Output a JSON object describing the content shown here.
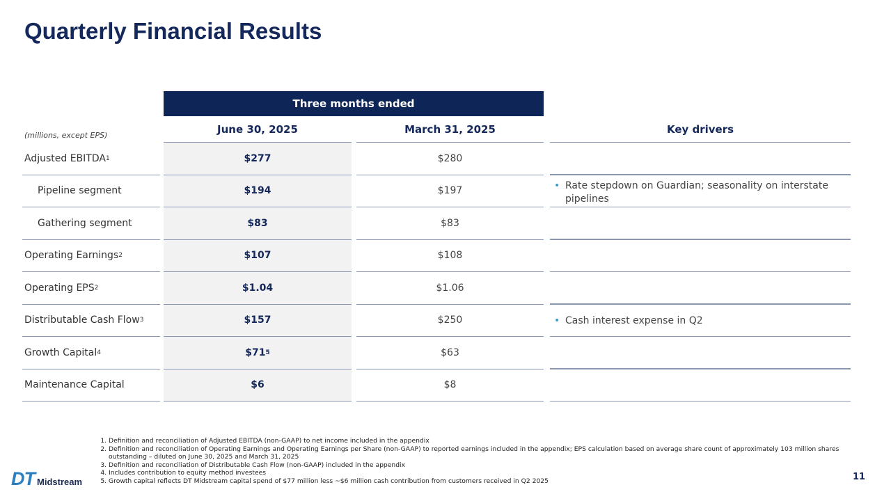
{
  "title": "Quarterly Financial Results",
  "table": {
    "group_header": "Three months ended",
    "units_note": "(millions, except EPS)",
    "columns": [
      "June 30, 2025",
      "March 31, 2025",
      "Key drivers"
    ],
    "rows": [
      {
        "label": "Adjusted EBITDA",
        "label_sup": "1",
        "current": "$277",
        "prior": "$280"
      },
      {
        "label": "Pipeline segment",
        "current": "$194",
        "prior": "$197"
      },
      {
        "label": "Gathering segment",
        "current": "$83",
        "prior": "$83"
      },
      {
        "label": "Operating Earnings",
        "label_sup": "2",
        "current": "$107",
        "prior": "$108"
      },
      {
        "label": "Operating EPS",
        "label_sup": "2",
        "current": "$1.04",
        "prior": "$1.06"
      },
      {
        "label": "Distributable Cash Flow",
        "label_sup": "3",
        "current": "$157",
        "prior": "$250"
      },
      {
        "label": "Growth Capital",
        "label_sup": "4",
        "current": "$71",
        "current_sup": "5",
        "prior": "$63"
      },
      {
        "label": "Maintenance Capital",
        "current": "$6",
        "prior": "$8"
      }
    ],
    "drivers": [
      "Rate stepdown on Guardian; seasonality on interstate pipelines",
      "Cash interest expense in Q2"
    ]
  },
  "footnotes": [
    "Definition and reconciliation of Adjusted EBITDA (non-GAAP) to net income included in the appendix",
    "Definition and reconciliation of Operating Earnings and Operating Earnings per Share (non-GAAP) to reported earnings included in the appendix; EPS calculation based on average share count of approximately 103 million shares outstanding – diluted on June 30, 2025 and March 31, 2025",
    "Definition and reconciliation of Distributable Cash Flow (non-GAAP) included in the appendix",
    "Includes contribution to equity method investees",
    "Growth capital reflects DT Midstream capital spend of $77 million less ~$6 million cash contribution from customers received in Q2 2025"
  ],
  "logo": {
    "mark": "DT",
    "text": "Midstream"
  },
  "page_number": "11"
}
